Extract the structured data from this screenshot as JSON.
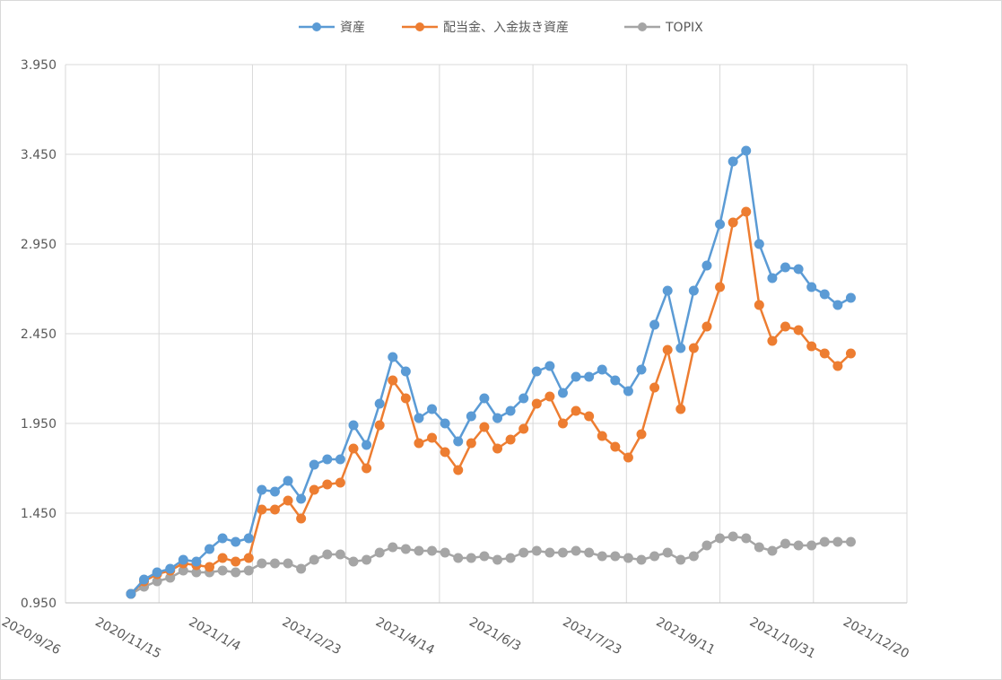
{
  "chart_data": {
    "type": "line",
    "title": "",
    "xlabel": "",
    "ylabel": "",
    "x_axis": {
      "type": "date",
      "min": "2020-09-26",
      "max": "2021-12-20",
      "ticks": [
        "2020-09-26",
        "2020-11-15",
        "2021-01-04",
        "2021-02-23",
        "2021-04-14",
        "2021-06-03",
        "2021-07-23",
        "2021-09-11",
        "2021-10-31",
        "2021-12-20"
      ],
      "tick_labels": [
        "2020/9/26",
        "2020/11/15",
        "2021/1/4",
        "2021/2/23",
        "2021/4/14",
        "2021/6/3",
        "2021/7/23",
        "2021/9/11",
        "2021/10/31",
        "2021/12/20"
      ]
    },
    "y_axis": {
      "min": 0.95,
      "max": 3.95,
      "ticks": [
        0.95,
        1.45,
        1.95,
        2.45,
        2.95,
        3.45,
        3.95
      ],
      "tick_labels": [
        "0.950",
        "1.450",
        "1.950",
        "2.450",
        "2.950",
        "3.450",
        "3.950"
      ]
    },
    "grid": true,
    "legend": {
      "position": "top"
    },
    "x": [
      "2020-10-31",
      "2020-11-07",
      "2020-11-14",
      "2020-11-21",
      "2020-11-28",
      "2020-12-05",
      "2020-12-12",
      "2020-12-19",
      "2020-12-26",
      "2021-01-02",
      "2021-01-09",
      "2021-01-16",
      "2021-01-23",
      "2021-01-30",
      "2021-02-06",
      "2021-02-13",
      "2021-02-20",
      "2021-02-27",
      "2021-03-06",
      "2021-03-13",
      "2021-03-20",
      "2021-03-27",
      "2021-04-03",
      "2021-04-10",
      "2021-04-17",
      "2021-04-24",
      "2021-05-01",
      "2021-05-08",
      "2021-05-15",
      "2021-05-22",
      "2021-05-29",
      "2021-06-05",
      "2021-06-12",
      "2021-06-19",
      "2021-06-26",
      "2021-07-03",
      "2021-07-10",
      "2021-07-17",
      "2021-07-24",
      "2021-07-31",
      "2021-08-07",
      "2021-08-14",
      "2021-08-21",
      "2021-08-28",
      "2021-09-04",
      "2021-09-11",
      "2021-09-18",
      "2021-09-25",
      "2021-10-02",
      "2021-10-09",
      "2021-10-16",
      "2021-10-23",
      "2021-10-30",
      "2021-11-06",
      "2021-11-13",
      "2021-11-20"
    ],
    "series": [
      {
        "name": "資産",
        "color": "#5b9bd5",
        "values": [
          1.0,
          1.08,
          1.12,
          1.14,
          1.19,
          1.18,
          1.25,
          1.31,
          1.29,
          1.31,
          1.58,
          1.57,
          1.63,
          1.53,
          1.72,
          1.75,
          1.75,
          1.94,
          1.83,
          2.06,
          2.32,
          2.24,
          1.98,
          2.03,
          1.95,
          1.85,
          1.99,
          2.09,
          1.98,
          2.02,
          2.09,
          2.24,
          2.27,
          2.12,
          2.21,
          2.21,
          2.25,
          2.19,
          2.13,
          2.25,
          2.5,
          2.69,
          2.37,
          2.69,
          2.83,
          3.06,
          3.41,
          3.47,
          2.95,
          2.76,
          2.82,
          2.81,
          2.71,
          2.67,
          2.61,
          2.65
        ]
      },
      {
        "name": "配当金、入金抜き資産",
        "color": "#ed7d31",
        "values": [
          1.0,
          1.07,
          1.11,
          1.13,
          1.17,
          1.16,
          1.15,
          1.2,
          1.18,
          1.2,
          1.47,
          1.47,
          1.52,
          1.42,
          1.58,
          1.61,
          1.62,
          1.81,
          1.7,
          1.94,
          2.19,
          2.09,
          1.84,
          1.87,
          1.79,
          1.69,
          1.84,
          1.93,
          1.81,
          1.86,
          1.92,
          2.06,
          2.1,
          1.95,
          2.02,
          1.99,
          1.88,
          1.82,
          1.76,
          1.89,
          2.15,
          2.36,
          2.03,
          2.37,
          2.49,
          2.71,
          3.07,
          3.13,
          2.61,
          2.41,
          2.49,
          2.47,
          2.38,
          2.34,
          2.27,
          2.34
        ]
      },
      {
        "name": "TOPIX",
        "color": "#a5a5a5",
        "values": [
          1.0,
          1.04,
          1.07,
          1.09,
          1.13,
          1.12,
          1.12,
          1.13,
          1.12,
          1.13,
          1.17,
          1.17,
          1.17,
          1.14,
          1.19,
          1.22,
          1.22,
          1.18,
          1.19,
          1.23,
          1.26,
          1.25,
          1.24,
          1.24,
          1.23,
          1.2,
          1.2,
          1.21,
          1.19,
          1.2,
          1.23,
          1.24,
          1.23,
          1.23,
          1.24,
          1.23,
          1.21,
          1.21,
          1.2,
          1.19,
          1.21,
          1.23,
          1.19,
          1.21,
          1.27,
          1.31,
          1.32,
          1.31,
          1.26,
          1.24,
          1.28,
          1.27,
          1.27,
          1.29,
          1.29,
          1.29
        ]
      }
    ]
  }
}
